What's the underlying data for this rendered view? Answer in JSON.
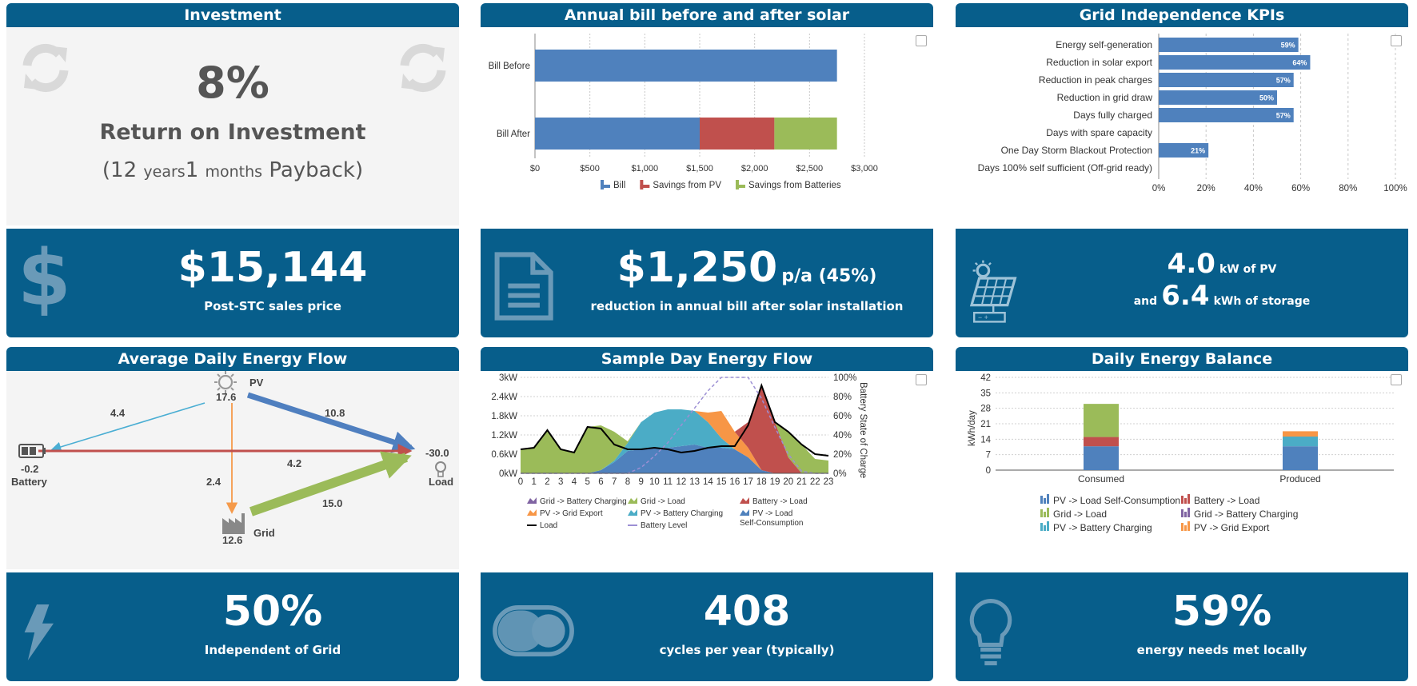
{
  "investment": {
    "title": "Investment",
    "roi_value": "8%",
    "roi_label": "Return on Investment",
    "payback_open": "(12",
    "payback_years_unit": "years",
    "payback_months": "1",
    "payback_months_unit": "months",
    "payback_close": "Payback)",
    "price": "$15,144",
    "price_label": "Post-STC sales price"
  },
  "annual_bill": {
    "title": "Annual bill before and after solar",
    "saving_value": "$1,250",
    "saving_suffix": "p/a (45%)",
    "saving_label": "reduction in annual bill after solar installation"
  },
  "grid_kpis": {
    "title": "Grid Independence KPIs",
    "pv_value": "4.0",
    "pv_unit": "kW of PV",
    "and_label": "and",
    "storage_value": "6.4",
    "storage_unit": "kWh of storage"
  },
  "avg_flow": {
    "title": "Average Daily Energy Flow",
    "pv_label": "PV",
    "pv_value": "17.6",
    "battery_label": "Battery",
    "battery_value": "-0.2",
    "load_label": "Load",
    "load_value": "-30.0",
    "grid_label": "Grid",
    "grid_value": "12.6",
    "flow_pv_battery": "4.4",
    "flow_pv_load": "10.8",
    "flow_pv_grid": "2.4",
    "flow_battery_load": "4.2",
    "flow_grid_load": "15.0",
    "independent_value": "50%",
    "independent_label": "Independent of Grid",
    "colors": {
      "pv_battery": "#4aaed3",
      "pv_load": "#4f7fbf",
      "pv_grid": "#f59a4a",
      "battery_load": "#c0504d",
      "grid_load": "#9bbb59"
    }
  },
  "sample_day": {
    "title": "Sample Day Energy Flow",
    "cycles_value": "408",
    "cycles_label": "cycles per year (typically)"
  },
  "daily_balance": {
    "title": "Daily Energy Balance",
    "local_value": "59%",
    "local_label": "energy needs met locally"
  },
  "chart_data": [
    {
      "id": "annual_bill",
      "type": "bar",
      "orientation": "horizontal",
      "stacked": true,
      "categories": [
        "Bill Before",
        "Bill After"
      ],
      "series": [
        {
          "name": "Bill",
          "values": [
            2750,
            1500
          ],
          "color": "#4f81bd"
        },
        {
          "name": "Savings from PV",
          "values": [
            0,
            680
          ],
          "color": "#c0504d"
        },
        {
          "name": "Savings from Batteries",
          "values": [
            0,
            570
          ],
          "color": "#9bbb59"
        }
      ],
      "xlim": [
        0,
        3000
      ],
      "x_ticks": [
        "$0",
        "$500",
        "$1,000",
        "$1,500",
        "$2,000",
        "$2,500",
        "$3,000"
      ],
      "legend": "bottom"
    },
    {
      "id": "grid_kpis",
      "type": "bar",
      "orientation": "horizontal",
      "categories": [
        "Energy self-generation",
        "Reduction in solar export",
        "Reduction in peak charges",
        "Reduction in grid draw",
        "Days fully charged",
        "Days with spare capacity",
        "One Day Storm Blackout Protection",
        "Days 100% self sufficient (Off-grid ready)"
      ],
      "values": [
        59,
        64,
        57,
        50,
        57,
        0,
        21,
        0
      ],
      "data_labels": [
        "59%",
        "64%",
        "57%",
        "50%",
        "57%",
        "",
        "21%",
        ""
      ],
      "xlim": [
        0,
        100
      ],
      "x_ticks": [
        "0%",
        "20%",
        "40%",
        "60%",
        "80%",
        "100%"
      ],
      "grid": true
    },
    {
      "id": "sample_day",
      "type": "area",
      "x": [
        0,
        1,
        2,
        3,
        4,
        5,
        6,
        7,
        8,
        9,
        10,
        11,
        12,
        13,
        14,
        15,
        16,
        17,
        18,
        19,
        20,
        21,
        22,
        23
      ],
      "x_ticks": [
        "0",
        "1",
        "2",
        "3",
        "4",
        "5",
        "6",
        "7",
        "8",
        "9",
        "10",
        "11",
        "12",
        "13",
        "14",
        "15",
        "16",
        "17",
        "18",
        "19",
        "20",
        "21",
        "22",
        "23"
      ],
      "ylim": [
        0,
        3
      ],
      "y_ticks": [
        "0kW",
        "0.6kW",
        "1.2kW",
        "1.8kW",
        "2.4kW",
        "3kW"
      ],
      "y2_ticks": [
        "0%",
        "20%",
        "40%",
        "60%",
        "80%",
        "100%"
      ],
      "y2label": "Battery State of Charge",
      "series": [
        {
          "name": "PV -> Load Self-Consumption",
          "type": "area",
          "color": "#4f81bd",
          "values": [
            0,
            0,
            0,
            0,
            0,
            0,
            0.1,
            0.35,
            0.7,
            0.75,
            0.8,
            0.8,
            0.85,
            0.9,
            0.8,
            0.8,
            0.75,
            0.5,
            0.1,
            0,
            0,
            0,
            0,
            0
          ]
        },
        {
          "name": "PV -> Battery Charging",
          "type": "area",
          "color": "#4bacc6",
          "values": [
            0,
            0,
            0,
            0,
            0,
            0,
            0,
            0.05,
            0.25,
            0.85,
            1.1,
            1.2,
            1.15,
            1.05,
            0.8,
            0.3,
            0,
            0,
            0,
            0,
            0,
            0,
            0,
            0
          ]
        },
        {
          "name": "PV -> Grid Export",
          "type": "area",
          "color": "#f79646",
          "values": [
            0,
            0,
            0,
            0,
            0,
            0,
            0,
            0,
            0,
            0,
            0,
            0,
            0,
            0,
            0.3,
            0.85,
            0.55,
            0.3,
            0,
            0,
            0,
            0,
            0,
            0
          ]
        },
        {
          "name": "Battery -> Load",
          "type": "area",
          "color": "#c0504d",
          "values": [
            0,
            0,
            0,
            0,
            0,
            0,
            0,
            0,
            0,
            0,
            0,
            0,
            0,
            0,
            0,
            0,
            0,
            0.8,
            2.7,
            1.6,
            0.5,
            0,
            0,
            0
          ]
        },
        {
          "name": "Grid -> Load",
          "type": "area",
          "color": "#9bbb59",
          "values": [
            0.75,
            0.8,
            1.35,
            0.75,
            0.65,
            1.45,
            1.4,
            0.9,
            0.05,
            0,
            0,
            0,
            0,
            0,
            0,
            0,
            0,
            0,
            0,
            0,
            0.8,
            0.9,
            0.45,
            0.4
          ]
        },
        {
          "name": "Grid -> Battery Charging",
          "type": "area",
          "color": "#8064a2",
          "values": [
            0,
            0,
            0,
            0,
            0,
            0,
            0,
            0,
            0,
            0,
            0,
            0,
            0,
            0,
            0,
            0,
            0,
            0,
            0,
            0,
            0,
            0,
            0,
            0
          ]
        },
        {
          "name": "Load",
          "type": "line",
          "color": "#000000",
          "values": [
            0.75,
            0.8,
            1.35,
            0.75,
            0.65,
            1.45,
            1.4,
            0.9,
            0.75,
            0.75,
            0.8,
            0.75,
            0.65,
            0.7,
            0.8,
            0.85,
            0.85,
            1.5,
            2.75,
            1.6,
            1.3,
            0.9,
            0.6,
            0.55
          ]
        },
        {
          "name": "Battery Level",
          "type": "line",
          "axis": "y2",
          "dashed": true,
          "color": "#9c8fd4",
          "values_pct": [
            0,
            0,
            0,
            0,
            0,
            0,
            0,
            0,
            0,
            6,
            18,
            32,
            50,
            68,
            86,
            100,
            100,
            100,
            78,
            48,
            20,
            2,
            0,
            0
          ]
        }
      ],
      "legend": "bottom"
    },
    {
      "id": "daily_balance",
      "type": "bar",
      "stacked": true,
      "categories": [
        "Consumed",
        "Produced"
      ],
      "ylabel": "kWh/day",
      "ylim": [
        0,
        42
      ],
      "y_ticks": [
        "0",
        "7",
        "14",
        "21",
        "28",
        "35",
        "42"
      ],
      "series": [
        {
          "name": "PV -> Load Self-Consumption",
          "color": "#4f81bd",
          "values": [
            10.8,
            10.8
          ]
        },
        {
          "name": "Battery -> Load",
          "color": "#c0504d",
          "values": [
            4.2,
            0
          ]
        },
        {
          "name": "Grid -> Load",
          "color": "#9bbb59",
          "values": [
            15.0,
            0
          ]
        },
        {
          "name": "Grid -> Battery Charging",
          "color": "#8064a2",
          "values": [
            0,
            0
          ]
        },
        {
          "name": "PV -> Battery Charging",
          "color": "#4bacc6",
          "values": [
            0,
            4.4
          ]
        },
        {
          "name": "PV -> Grid Export",
          "color": "#f79646",
          "values": [
            0,
            2.4
          ]
        }
      ],
      "legend": "bottom"
    }
  ]
}
